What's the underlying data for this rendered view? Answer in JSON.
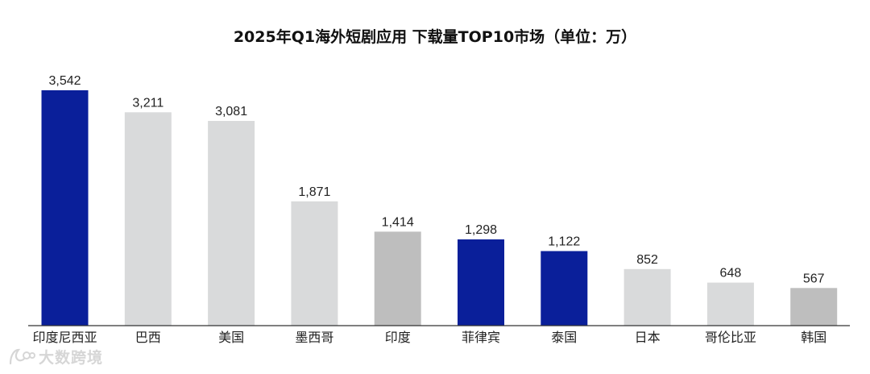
{
  "chart_data": {
    "type": "bar",
    "title": "2025年Q1海外短剧应用 下载量TOP10市场（单位：万）",
    "categories": [
      "印度尼西亚",
      "巴西",
      "美国",
      "墨西哥",
      "印度",
      "菲律宾",
      "泰国",
      "日本",
      "哥伦比亚",
      "韩国"
    ],
    "values": [
      3542,
      3211,
      3081,
      1871,
      1414,
      1298,
      1122,
      852,
      648,
      567
    ],
    "value_labels": [
      "3,542",
      "3,211",
      "3,081",
      "1,871",
      "1,414",
      "1,298",
      "1,122",
      "852",
      "648",
      "567"
    ],
    "bar_colors": [
      "#0a1f9a",
      "#d9dadb",
      "#d9dadb",
      "#d9dadb",
      "#bebebe",
      "#0a1f9a",
      "#0a1f9a",
      "#d9dadb",
      "#d9dadb",
      "#bebebe"
    ],
    "ylim": [
      0,
      3542
    ],
    "xlabel": "",
    "ylabel": "",
    "grid": false,
    "legend": "none"
  },
  "watermark": {
    "text": "大数跨境",
    "icon": "logo-icon",
    "color": "#d6d6d6"
  },
  "colors": {
    "axis": "#333333",
    "text": "#222222"
  }
}
